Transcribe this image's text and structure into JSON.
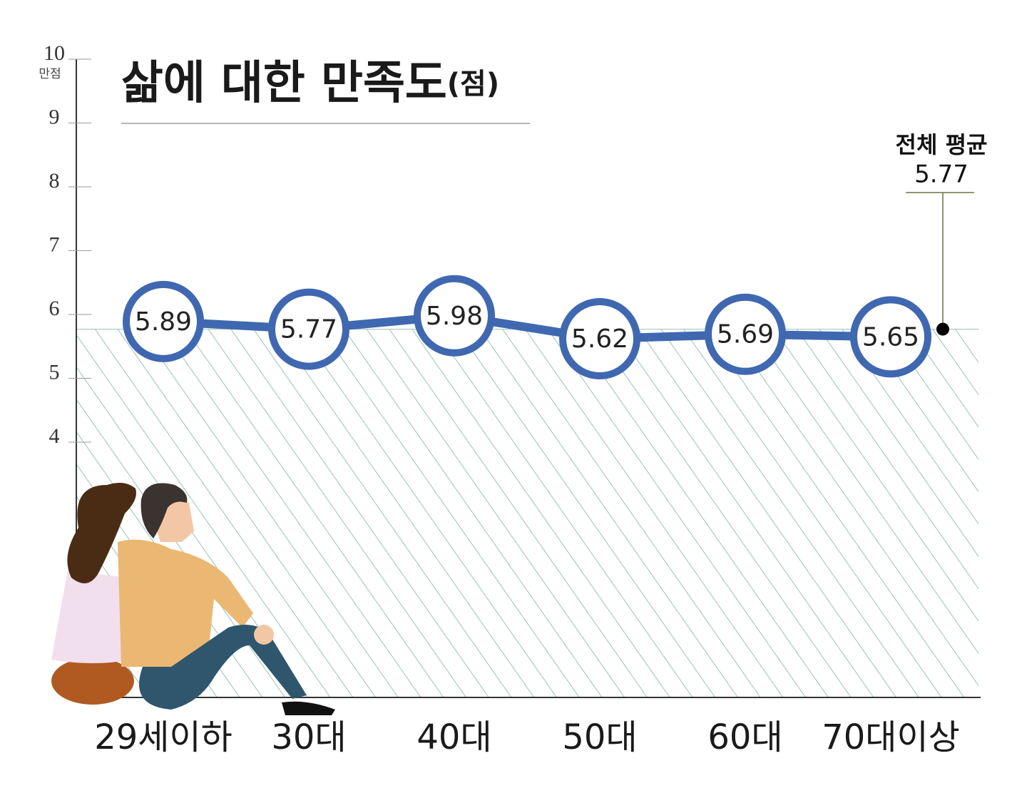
{
  "chart_data": {
    "type": "line",
    "title": "삶에 대한 만족도",
    "title_unit": "(점)",
    "y_max_note": "만점",
    "categories": [
      "29세이하",
      "30대",
      "40대",
      "50대",
      "60대",
      "70대이상"
    ],
    "values": [
      5.89,
      5.77,
      5.98,
      5.62,
      5.69,
      5.65
    ],
    "color": "#3f68b0",
    "average": {
      "label": "전체 평균",
      "value": 5.77
    },
    "ylim": [
      0,
      10
    ],
    "yticks": [
      4,
      5,
      6,
      7,
      8,
      9,
      10
    ],
    "grid": false
  }
}
